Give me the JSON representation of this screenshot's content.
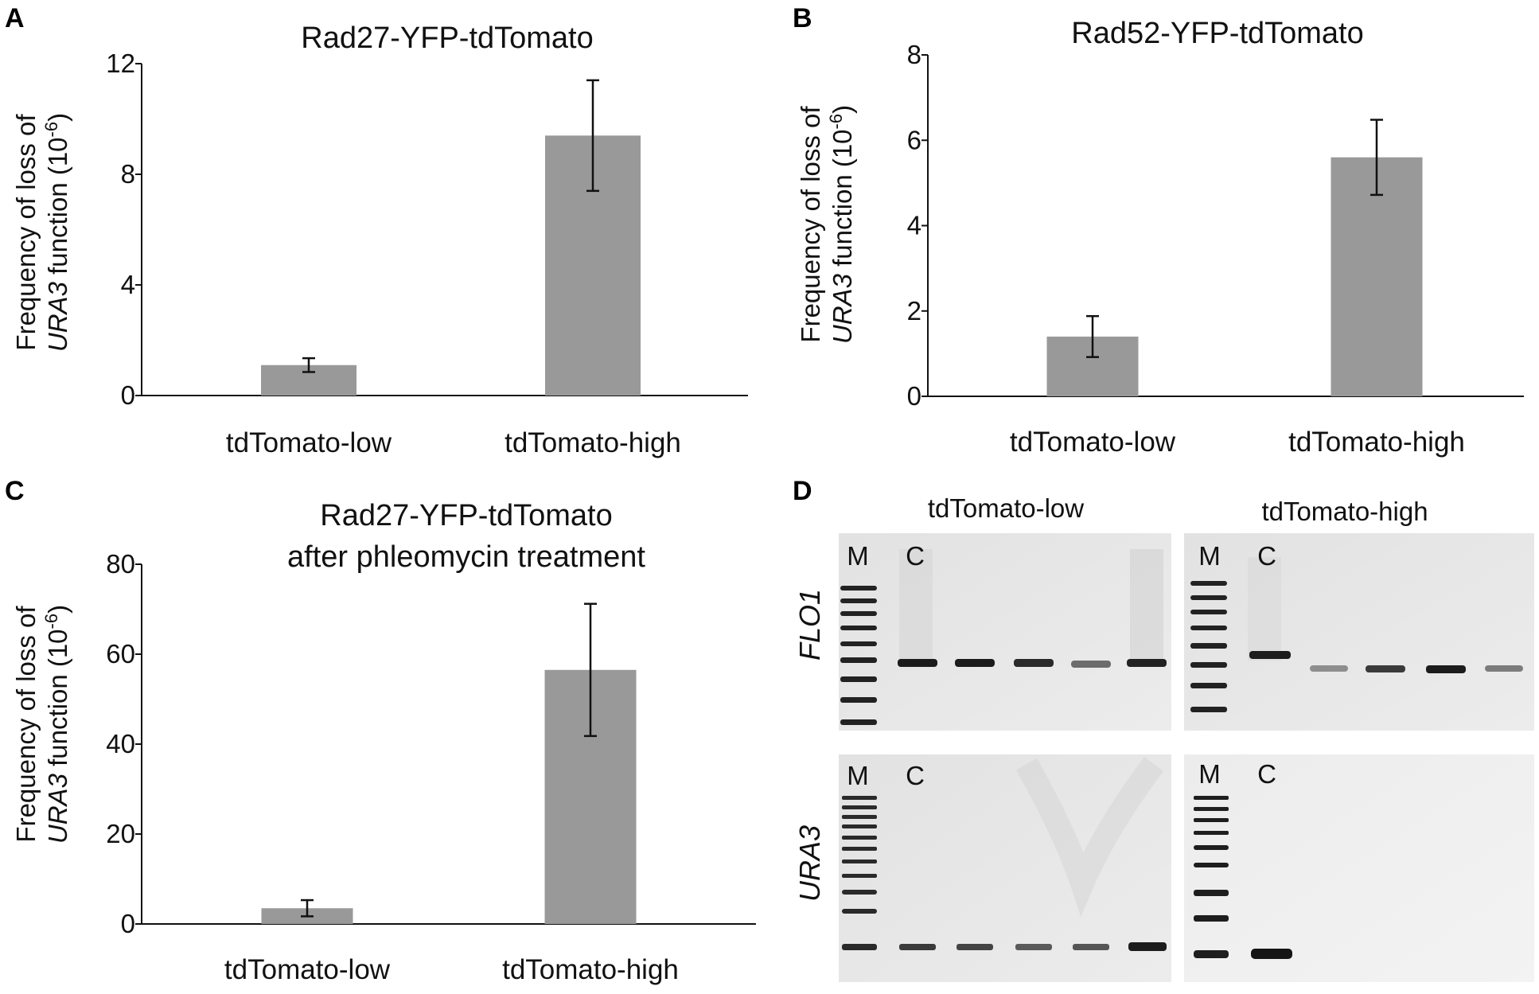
{
  "panels": [
    {
      "label": "A"
    },
    {
      "label": "B"
    },
    {
      "label": "C"
    },
    {
      "label": "D"
    }
  ],
  "ylabel": {
    "line1": "Frequency of loss of",
    "gene": "URA3",
    "line2_rest": " function (10",
    "exp": "-6",
    "close": ")"
  },
  "chart_data": [
    {
      "panel": "A",
      "type": "bar",
      "title": "Rad27-YFP-tdTomato",
      "categories": [
        "tdTomato-low",
        "tdTomato-high"
      ],
      "values": [
        1.1,
        9.4
      ],
      "error": [
        0.25,
        2.0
      ],
      "ylim": [
        0,
        12
      ],
      "yticks": [
        0,
        4,
        8,
        12
      ]
    },
    {
      "panel": "B",
      "type": "bar",
      "title": "Rad52-YFP-tdTomato",
      "categories": [
        "tdTomato-low",
        "tdTomato-high"
      ],
      "values": [
        1.4,
        5.6
      ],
      "error": [
        0.48,
        0.88
      ],
      "ylim": [
        0,
        8
      ],
      "yticks": [
        0,
        2,
        4,
        6,
        8
      ]
    },
    {
      "panel": "C",
      "type": "bar",
      "title": "Rad27-YFP-tdTomato",
      "subtitle": "after phleomycin treatment",
      "categories": [
        "tdTomato-low",
        "tdTomato-high"
      ],
      "values": [
        3.5,
        56.5
      ],
      "error": [
        1.8,
        14.7
      ],
      "ylim": [
        0,
        80
      ],
      "yticks": [
        0,
        20,
        40,
        60,
        80
      ]
    }
  ],
  "gel": {
    "groups": [
      "tdTomato-low",
      "tdTomato-high"
    ],
    "genes": [
      "FLO1",
      "URA3"
    ],
    "marker_label": "M",
    "control_label": "C"
  }
}
